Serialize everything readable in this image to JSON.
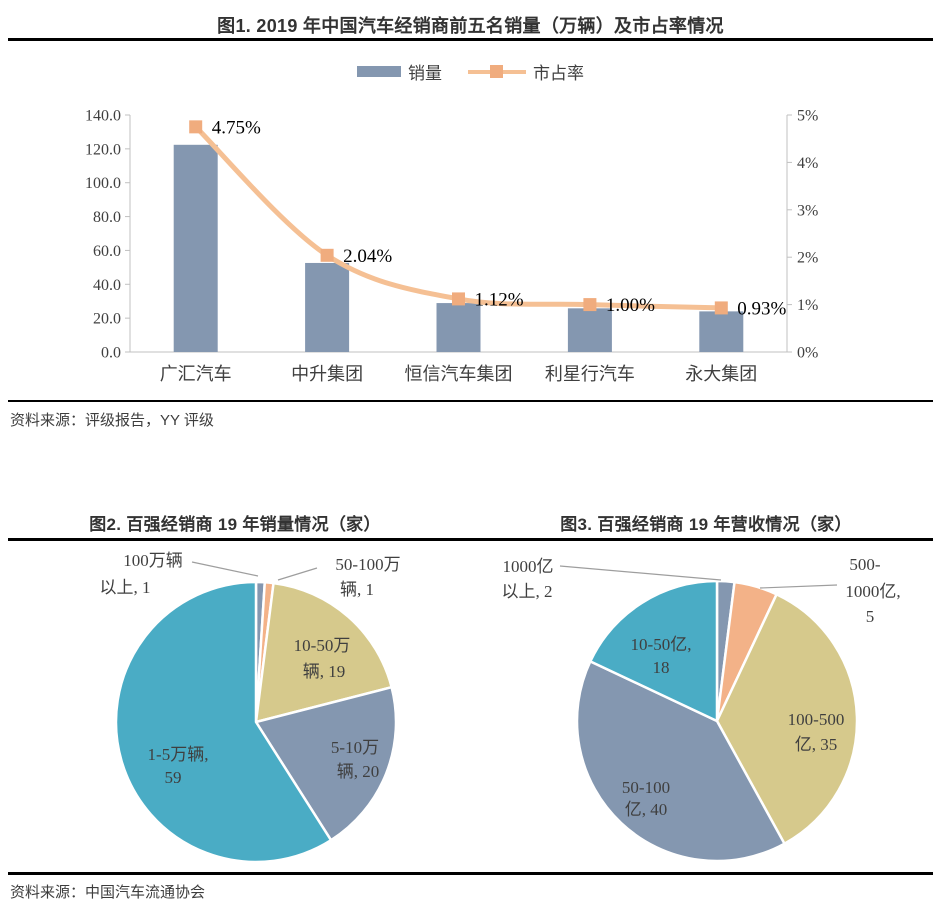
{
  "page": {
    "figure1": {
      "title": "图1. 2019 年中国汽车经销商前五名销量（万辆）及市占率情况",
      "legend": {
        "bar_label": "销量",
        "line_label": "市占率"
      },
      "source": "资料来源：评级报告，YY 评级"
    },
    "figure2": {
      "title": "图2. 百强经销商 19 年销量情况（家）"
    },
    "figure3": {
      "title": "图3. 百强经销商 19 年营收情况（家）"
    },
    "footer_source": "资料来源：中国汽车流通协会"
  },
  "colors": {
    "bar": "#8497B0",
    "line": "#F5C094",
    "marker": "#F0AC7E",
    "slate": "#8497B0",
    "teal": "#4AACC5",
    "khaki": "#D6C98C",
    "orange": "#F3B288",
    "axis": "#C0C0C0",
    "leader": "#9E9E9E",
    "chart_text": "#3F3F3F",
    "point_label_text": "#000000"
  },
  "chart_data": [
    {
      "id": "fig1",
      "type": "bar",
      "subtype": "combo-bar-line",
      "title": "图1. 2019 年中国汽车经销商前五名销量（万辆）及市占率情况",
      "categories": [
        "广汇汽车",
        "中升集团",
        "恒信汽车集团",
        "利星行汽车",
        "永大集团"
      ],
      "series": [
        {
          "name": "销量",
          "kind": "bar",
          "axis": "left",
          "values": [
            122.4,
            52.6,
            28.9,
            25.8,
            24.0
          ]
        },
        {
          "name": "市占率",
          "kind": "line",
          "axis": "right",
          "values": [
            4.75,
            2.04,
            1.12,
            1.0,
            0.93
          ],
          "point_labels": [
            "4.75%",
            "2.04%",
            "1.12%",
            "1.00%",
            "0.93%"
          ]
        }
      ],
      "left_axis": {
        "min": 0,
        "max": 140,
        "step": 20,
        "ticks": [
          "0.0",
          "20.0",
          "40.0",
          "60.0",
          "80.0",
          "100.0",
          "120.0",
          "140.0"
        ]
      },
      "right_axis": {
        "min": 0,
        "max": 5,
        "step": 1,
        "ticks": [
          "0%",
          "1%",
          "2%",
          "3%",
          "4%",
          "5%"
        ]
      },
      "grid": false,
      "legend_position": "top"
    },
    {
      "id": "fig2",
      "type": "pie",
      "title": "图2. 百强经销商 19 年销量情况（家）",
      "start_angle_deg": 0,
      "direction": "clockwise",
      "slices": [
        {
          "label": "100万辆以上",
          "value": 1,
          "color_key": "slate",
          "label_lines": [
            "100万辆",
            "以上, 1"
          ],
          "label_placement": "outside"
        },
        {
          "label": "50-100万辆",
          "value": 1,
          "color_key": "orange",
          "label_lines": [
            "50-100万",
            "辆, 1"
          ],
          "label_placement": "outside"
        },
        {
          "label": "10-50万辆",
          "value": 19,
          "color_key": "khaki",
          "label_lines": [
            "10-50万",
            "辆, 19"
          ],
          "label_placement": "inside"
        },
        {
          "label": "5-10万辆",
          "value": 20,
          "color_key": "slate",
          "label_lines": [
            "5-10万",
            "辆, 20"
          ],
          "label_placement": "inside"
        },
        {
          "label": "1-5万辆",
          "value": 59,
          "color_key": "teal",
          "label_lines": [
            "1-5万辆,",
            "59"
          ],
          "label_placement": "inside"
        }
      ]
    },
    {
      "id": "fig3",
      "type": "pie",
      "title": "图3. 百强经销商 19 年营收情况（家）",
      "start_angle_deg": 0,
      "direction": "clockwise",
      "slices": [
        {
          "label": "1000亿以上",
          "value": 2,
          "color_key": "slate",
          "label_lines": [
            "1000亿",
            "以上, 2"
          ],
          "label_placement": "outside"
        },
        {
          "label": "500-1000亿",
          "value": 5,
          "color_key": "orange",
          "label_lines": [
            "500-",
            "1000亿,",
            "5"
          ],
          "label_placement": "outside"
        },
        {
          "label": "100-500亿",
          "value": 35,
          "color_key": "khaki",
          "label_lines": [
            "100-500",
            "亿, 35"
          ],
          "label_placement": "inside"
        },
        {
          "label": "50-100亿",
          "value": 40,
          "color_key": "slate",
          "label_lines": [
            "50-100",
            "亿, 40"
          ],
          "label_placement": "inside"
        },
        {
          "label": "10-50亿",
          "value": 18,
          "color_key": "teal",
          "label_lines": [
            "10-50亿,",
            "18"
          ],
          "label_placement": "inside"
        }
      ]
    }
  ]
}
